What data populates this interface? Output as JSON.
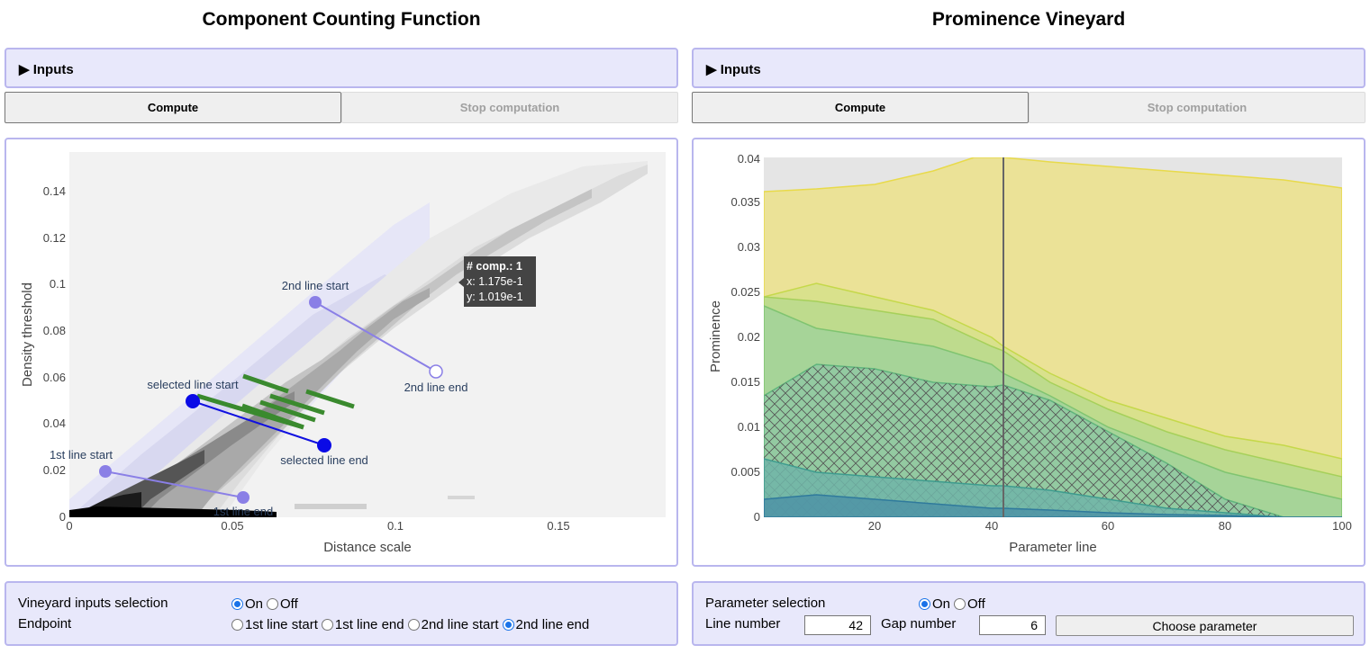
{
  "left": {
    "title": "Component Counting Function",
    "inputs_label": "Inputs",
    "compute_label": "Compute",
    "stop_label": "Stop computation",
    "plot": {
      "x_ticks": [
        "0",
        "0.05",
        "0.1",
        "0.15"
      ],
      "y_ticks": [
        "0",
        "0.02",
        "0.04",
        "0.06",
        "0.08",
        "0.1",
        "0.12",
        "0.14"
      ],
      "xlabel": "Distance scale",
      "ylabel": "Density threshold",
      "annotations": {
        "first_start": "1st line start",
        "first_end": "1st line end",
        "second_start": "2nd line start",
        "second_end": "2nd line end",
        "selected_start": "selected line start",
        "selected_end": "selected line end"
      },
      "tooltip": {
        "line1": "# comp.: 1",
        "line2": "x: 1.175e-1",
        "line3": "y: 1.019e-1"
      },
      "colors": {
        "selected": "#0000e6",
        "line_marker": "#7b68ee",
        "green_bars": "#3a8a2e"
      }
    },
    "controls": {
      "vineyard_label": "Vineyard inputs selection",
      "on_label": "On",
      "off_label": "Off",
      "vineyard_selected": "On",
      "endpoint_label": "Endpoint",
      "endpoints": [
        "1st line start",
        "1st line end",
        "2nd line start",
        "2nd line end"
      ],
      "endpoint_selected": "2nd line end"
    }
  },
  "right": {
    "title": "Prominence Vineyard",
    "inputs_label": "Inputs",
    "compute_label": "Compute",
    "stop_label": "Stop computation",
    "plot": {
      "x_ticks": [
        "20",
        "40",
        "60",
        "80",
        "100"
      ],
      "y_ticks": [
        "0",
        "0.005",
        "0.01",
        "0.015",
        "0.02",
        "0.025",
        "0.03",
        "0.035",
        "0.04"
      ],
      "xlabel": "Parameter line",
      "ylabel": "Prominence",
      "selected_line": 42
    },
    "controls": {
      "param_label": "Parameter selection",
      "on_label": "On",
      "off_label": "Off",
      "param_selected": "On",
      "line_number_label": "Line number",
      "line_number": "42",
      "gap_number_label": "Gap number",
      "gap_number": "6",
      "choose_label": "Choose parameter"
    }
  },
  "chart_data": [
    {
      "type": "heatmap",
      "title": "",
      "xlabel": "Distance scale",
      "ylabel": "Density threshold",
      "xlim": [
        0,
        0.183
      ],
      "ylim": [
        0,
        0.157
      ],
      "lines": [
        {
          "name": "1st line",
          "start": [
            0.011,
            0.019
          ],
          "end": [
            0.053,
            0.008
          ]
        },
        {
          "name": "2nd line",
          "start": [
            0.072,
            0.092
          ],
          "end": [
            0.112,
            0.062
          ]
        },
        {
          "name": "selected line",
          "start": [
            0.038,
            0.049
          ],
          "end": [
            0.078,
            0.031
          ]
        }
      ],
      "tooltip_point": {
        "x": 0.1175,
        "y": 0.1019,
        "components": 1
      }
    },
    {
      "type": "area",
      "title": "",
      "xlabel": "Parameter line",
      "ylabel": "Prominence",
      "xlim": [
        1,
        100
      ],
      "ylim": [
        0,
        0.04
      ],
      "vertical_line_x": 42,
      "series": [
        {
          "x": [
            1,
            10,
            20,
            30,
            37,
            42,
            50,
            60,
            70,
            80,
            90,
            100
          ],
          "values": [
            0.0362,
            0.0365,
            0.037,
            0.0385,
            0.04,
            0.04,
            0.0395,
            0.039,
            0.0385,
            0.038,
            0.0375,
            0.0366
          ]
        },
        {
          "x": [
            1,
            10,
            20,
            30,
            40,
            42,
            50,
            60,
            70,
            80,
            90,
            100
          ],
          "values": [
            0.0245,
            0.026,
            0.0245,
            0.023,
            0.02,
            0.019,
            0.016,
            0.013,
            0.011,
            0.009,
            0.008,
            0.0065
          ]
        },
        {
          "x": [
            1,
            10,
            20,
            30,
            40,
            42,
            50,
            60,
            70,
            80,
            90,
            100
          ],
          "values": [
            0.0245,
            0.024,
            0.023,
            0.022,
            0.019,
            0.0185,
            0.015,
            0.012,
            0.0095,
            0.0075,
            0.006,
            0.0045
          ]
        },
        {
          "x": [
            1,
            10,
            20,
            30,
            40,
            42,
            50,
            60,
            70,
            80,
            90,
            100
          ],
          "values": [
            0.0235,
            0.021,
            0.02,
            0.019,
            0.017,
            0.016,
            0.0135,
            0.01,
            0.0075,
            0.005,
            0.0035,
            0.002
          ]
        },
        {
          "x": [
            1,
            10,
            20,
            30,
            40,
            42,
            50,
            60,
            70,
            80,
            90,
            100
          ],
          "values": [
            0.0135,
            0.017,
            0.0165,
            0.015,
            0.0145,
            0.0147,
            0.013,
            0.0095,
            0.006,
            0.002,
            0.0,
            0.0
          ]
        },
        {
          "x": [
            1,
            10,
            20,
            30,
            40,
            42,
            50,
            60,
            70,
            80,
            90,
            100
          ],
          "values": [
            0.0065,
            0.005,
            0.0045,
            0.004,
            0.0035,
            0.0035,
            0.003,
            0.002,
            0.001,
            0.0005,
            0.0,
            0.0
          ]
        },
        {
          "x": [
            1,
            10,
            20,
            30,
            40,
            42,
            50,
            60,
            70,
            80,
            90,
            100
          ],
          "values": [
            0.002,
            0.0025,
            0.002,
            0.0015,
            0.001,
            0.001,
            0.0008,
            0.0005,
            0.0003,
            0.0002,
            0.0,
            0.0
          ]
        }
      ]
    }
  ]
}
